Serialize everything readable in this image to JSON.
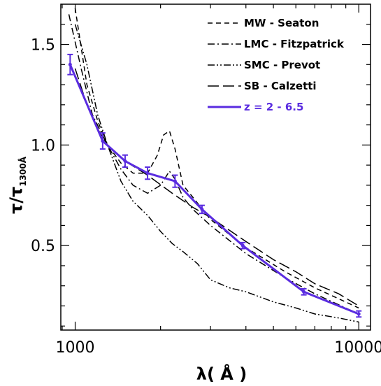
{
  "chart_data": {
    "type": "line",
    "xlabel": "λ( Å )",
    "ylabel_main": "τ/τ",
    "ylabel_sub": "1300Å",
    "xscale": "log",
    "xlim": [
      890,
      11000
    ],
    "ylim": [
      0.08,
      1.7
    ],
    "xticks": [
      {
        "value": 1000,
        "label": "1000"
      },
      {
        "value": 10000,
        "label": "10000"
      }
    ],
    "yticks": [
      {
        "value": 0.5,
        "label": "0.5"
      },
      {
        "value": 1.0,
        "label": "1.0"
      },
      {
        "value": 1.5,
        "label": "1.5"
      }
    ],
    "legend_position": "top-right",
    "series": [
      {
        "name": "MW - Seaton",
        "style": "dashed",
        "color": "#000000",
        "x": [
          1000,
          1100,
          1200,
          1300,
          1450,
          1600,
          1800,
          1950,
          2050,
          2150,
          2250,
          2400,
          2600,
          3000,
          4000,
          5500,
          7000,
          10000
        ],
        "y": [
          1.68,
          1.3,
          1.12,
          1.0,
          0.91,
          0.86,
          0.86,
          0.95,
          1.05,
          1.07,
          0.98,
          0.8,
          0.74,
          0.63,
          0.49,
          0.37,
          0.29,
          0.19
        ]
      },
      {
        "name": "LMC - Fitzpatrick",
        "style": "dashdot",
        "color": "#000000",
        "x": [
          950,
          1050,
          1150,
          1300,
          1450,
          1600,
          1800,
          2000,
          2150,
          2250,
          2400,
          2600,
          3000,
          4000,
          5500,
          7000,
          10000
        ],
        "y": [
          1.65,
          1.38,
          1.15,
          1.0,
          0.88,
          0.8,
          0.76,
          0.8,
          0.87,
          0.83,
          0.74,
          0.68,
          0.6,
          0.46,
          0.34,
          0.26,
          0.16
        ]
      },
      {
        "name": "SMC - Prevot",
        "style": "dashdotdot",
        "color": "#000000",
        "x": [
          1000,
          1100,
          1200,
          1300,
          1450,
          1600,
          1800,
          2000,
          2200,
          2400,
          2700,
          3000,
          3500,
          4000,
          5000,
          6000,
          7000,
          8500,
          10000
        ],
        "y": [
          1.6,
          1.4,
          1.15,
          1.0,
          0.82,
          0.72,
          0.65,
          0.57,
          0.51,
          0.47,
          0.41,
          0.33,
          0.29,
          0.27,
          0.22,
          0.19,
          0.16,
          0.14,
          0.12
        ]
      },
      {
        "name": "SB - Calzetti",
        "style": "longdash",
        "color": "#000000",
        "x": [
          1000,
          1100,
          1200,
          1300,
          1500,
          1800,
          2200,
          2600,
          3000,
          4000,
          5000,
          6000,
          7000,
          8500,
          10000
        ],
        "y": [
          1.38,
          1.2,
          1.08,
          1.0,
          0.92,
          0.85,
          0.76,
          0.69,
          0.64,
          0.52,
          0.43,
          0.37,
          0.31,
          0.26,
          0.2
        ]
      },
      {
        "name": "z = 2 - 6.5",
        "style": "solid",
        "color": "#5a2ce0",
        "errorbars": true,
        "x": [
          960,
          1250,
          1500,
          1800,
          2250,
          2800,
          3900,
          6400,
          10000
        ],
        "y": [
          1.4,
          1.02,
          0.92,
          0.86,
          0.82,
          0.68,
          0.5,
          0.27,
          0.16
        ],
        "err": [
          0.05,
          0.04,
          0.03,
          0.03,
          0.03,
          0.02,
          0.015,
          0.015,
          0.015
        ]
      }
    ]
  }
}
